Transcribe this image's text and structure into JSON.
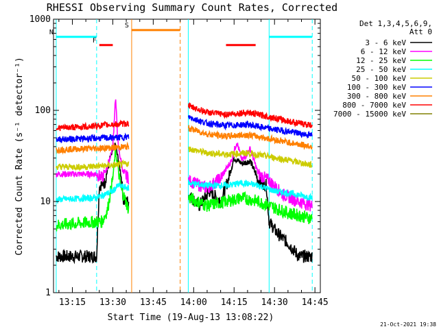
{
  "chart_data": {
    "type": "line",
    "title": "RHESSI Observing Summary Count Rates, Corrected",
    "xlabel": "Start Time (19-Aug-13 13:08:22)",
    "ylabel": "Corrected Count Rate (s⁻¹ detector⁻¹)",
    "y_scale": "log",
    "ylim": [
      1,
      1000
    ],
    "xlim": [
      "13:08:22",
      "14:47"
    ],
    "x_ticks": [
      "13:15",
      "13:30",
      "13:45",
      "14:00",
      "14:15",
      "14:30",
      "14:45"
    ],
    "y_ticks": [
      "1",
      "10",
      "100",
      "1000"
    ],
    "legend_header": [
      "Det 1,3,4,5,6,9,",
      "Att 0"
    ],
    "legend_position": "right",
    "timestamp": "21-Oct-2021 19:38",
    "data_gap": [
      "13:37",
      "13:58"
    ],
    "series": [
      {
        "name": "3 - 6 keV",
        "color": "#000000",
        "points": [
          [
            "13:09",
            2.5
          ],
          [
            "13:24",
            2.5
          ],
          [
            "13:25",
            15
          ],
          [
            "13:27",
            16
          ],
          [
            "13:29",
            30
          ],
          [
            "13:31",
            42
          ],
          [
            "13:33",
            20
          ],
          [
            "13:34",
            10
          ],
          [
            "13:36",
            10
          ],
          [
            "13:58",
            12
          ],
          [
            "14:02",
            9
          ],
          [
            "14:06",
            13
          ],
          [
            "14:10",
            10
          ],
          [
            "14:13",
            18
          ],
          [
            "14:15",
            30
          ],
          [
            "14:18",
            26
          ],
          [
            "14:21",
            28
          ],
          [
            "14:24",
            17
          ],
          [
            "14:27",
            15
          ],
          [
            "14:28",
            6
          ],
          [
            "14:31",
            4.5
          ],
          [
            "14:35",
            3.5
          ],
          [
            "14:39",
            2.5
          ],
          [
            "14:44",
            2.5
          ]
        ]
      },
      {
        "name": "6 - 12 keV",
        "color": "#ff00ff",
        "points": [
          [
            "13:09",
            20
          ],
          [
            "13:24",
            20
          ],
          [
            "13:26",
            18
          ],
          [
            "13:28",
            24
          ],
          [
            "13:30",
            40
          ],
          [
            "13:31",
            140
          ],
          [
            "13:32",
            40
          ],
          [
            "13:34",
            20
          ],
          [
            "13:36",
            18
          ],
          [
            "13:58",
            17
          ],
          [
            "14:05",
            14
          ],
          [
            "14:10",
            18
          ],
          [
            "14:14",
            28
          ],
          [
            "14:16",
            45
          ],
          [
            "14:18",
            28
          ],
          [
            "14:21",
            38
          ],
          [
            "14:24",
            20
          ],
          [
            "14:28",
            17
          ],
          [
            "14:33",
            12
          ],
          [
            "14:39",
            10
          ],
          [
            "14:44",
            9
          ]
        ]
      },
      {
        "name": "12 - 25 keV",
        "color": "#00ff00",
        "points": [
          [
            "13:09",
            5.5
          ],
          [
            "13:24",
            6
          ],
          [
            "13:26",
            6
          ],
          [
            "13:28",
            8
          ],
          [
            "13:30",
            18
          ],
          [
            "13:31",
            36
          ],
          [
            "13:33",
            14
          ],
          [
            "13:36",
            8
          ],
          [
            "13:58",
            11
          ],
          [
            "14:05",
            9
          ],
          [
            "14:12",
            10
          ],
          [
            "14:18",
            11
          ],
          [
            "14:24",
            10
          ],
          [
            "14:28",
            9
          ],
          [
            "14:35",
            7.5
          ],
          [
            "14:44",
            6.5
          ]
        ]
      },
      {
        "name": "25 - 50 keV",
        "color": "#00ffff",
        "points": [
          [
            "13:09",
            10.5
          ],
          [
            "13:24",
            11
          ],
          [
            "13:30",
            13
          ],
          [
            "13:32",
            15
          ],
          [
            "13:36",
            14
          ],
          [
            "13:58",
            16
          ],
          [
            "14:05",
            15
          ],
          [
            "14:12",
            15
          ],
          [
            "14:18",
            16
          ],
          [
            "14:24",
            15
          ],
          [
            "14:30",
            13
          ],
          [
            "14:38",
            12
          ],
          [
            "14:44",
            11
          ]
        ]
      },
      {
        "name": "50 - 100 keV",
        "color": "#cccc00",
        "points": [
          [
            "13:09",
            24
          ],
          [
            "13:20",
            24
          ],
          [
            "13:30",
            25
          ],
          [
            "13:36",
            26
          ],
          [
            "13:58",
            38
          ],
          [
            "14:05",
            34
          ],
          [
            "14:12",
            33
          ],
          [
            "14:20",
            34
          ],
          [
            "14:28",
            31
          ],
          [
            "14:36",
            28
          ],
          [
            "14:44",
            25
          ]
        ]
      },
      {
        "name": "100 - 300 keV",
        "color": "#0000ff",
        "points": [
          [
            "13:09",
            48
          ],
          [
            "13:20",
            49
          ],
          [
            "13:30",
            50
          ],
          [
            "13:36",
            51
          ],
          [
            "13:58",
            85
          ],
          [
            "14:05",
            72
          ],
          [
            "14:12",
            68
          ],
          [
            "14:20",
            70
          ],
          [
            "14:28",
            63
          ],
          [
            "14:36",
            58
          ],
          [
            "14:44",
            53
          ]
        ]
      },
      {
        "name": "300 - 800 keV",
        "color": "#ff8000",
        "points": [
          [
            "13:09",
            37
          ],
          [
            "13:20",
            38
          ],
          [
            "13:30",
            39
          ],
          [
            "13:36",
            40
          ],
          [
            "13:58",
            64
          ],
          [
            "14:05",
            55
          ],
          [
            "14:12",
            52
          ],
          [
            "14:20",
            54
          ],
          [
            "14:28",
            49
          ],
          [
            "14:36",
            44
          ],
          [
            "14:44",
            40
          ]
        ]
      },
      {
        "name": "800 - 7000 keV",
        "color": "#ff0000",
        "points": [
          [
            "13:09",
            64
          ],
          [
            "13:20",
            66
          ],
          [
            "13:30",
            70
          ],
          [
            "13:36",
            72
          ],
          [
            "13:58",
            112
          ],
          [
            "14:05",
            95
          ],
          [
            "14:12",
            90
          ],
          [
            "14:20",
            95
          ],
          [
            "14:28",
            85
          ],
          [
            "14:36",
            75
          ],
          [
            "14:44",
            68
          ]
        ]
      },
      {
        "name": "7000 - 15000 keV",
        "color": "#808000",
        "points": []
      }
    ],
    "markers": [
      {
        "label": "F",
        "color": "#ff0000",
        "x": [
          "13:25",
          "13:30"
        ],
        "y": 520
      },
      {
        "label": "N",
        "color": "#00ffff",
        "x": [
          "13:09",
          "13:24"
        ],
        "y": 640
      },
      {
        "label": "S",
        "color": "#ff8000",
        "x": [
          "13:37",
          "13:55"
        ],
        "y": 760
      },
      {
        "label": "",
        "color": "#ff0000",
        "x": [
          "14:12",
          "14:23"
        ],
        "y": 520
      },
      {
        "label": "",
        "color": "#00ffff",
        "x": [
          "14:28",
          "14:44"
        ],
        "y": 640
      }
    ],
    "vertical_lines": [
      {
        "x": "13:09",
        "color": "#00ffff",
        "style": "solid"
      },
      {
        "x": "13:24",
        "color": "#00ffff",
        "style": "dash"
      },
      {
        "x": "13:37",
        "color": "#ff8000",
        "style": "solid"
      },
      {
        "x": "13:55",
        "color": "#ff8000",
        "style": "dash"
      },
      {
        "x": "13:58",
        "color": "#00ffff",
        "style": "solid"
      },
      {
        "x": "14:28",
        "color": "#00ffff",
        "style": "solid"
      },
      {
        "x": "14:44",
        "color": "#00ffff",
        "style": "dash"
      }
    ]
  }
}
